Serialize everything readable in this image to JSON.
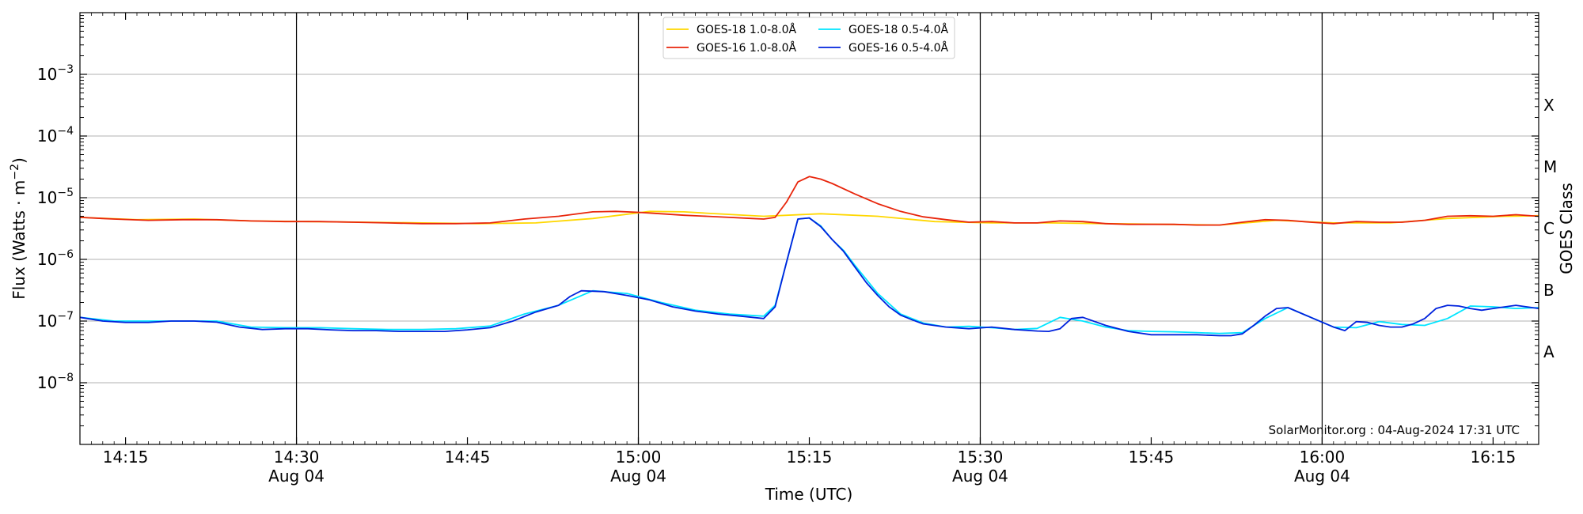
{
  "chart_data": {
    "type": "line",
    "xlabel": "Time (UTC)",
    "ylabel_main": "Flux (Watts · m",
    "ylabel_sup": "−2",
    "ylabel_close": ")",
    "ylabel_right": "GOES Class",
    "y_scale": "log",
    "ylim": [
      1e-09,
      0.01
    ],
    "x_range_minutes": [
      0,
      128
    ],
    "x_ticks": [
      {
        "m": 4,
        "time": "14:15",
        "date": ""
      },
      {
        "m": 19,
        "time": "14:30",
        "date": "Aug 04"
      },
      {
        "m": 34,
        "time": "14:45",
        "date": ""
      },
      {
        "m": 49,
        "time": "15:00",
        "date": "Aug 04"
      },
      {
        "m": 64,
        "time": "15:15",
        "date": ""
      },
      {
        "m": 79,
        "time": "15:30",
        "date": "Aug 04"
      },
      {
        "m": 94,
        "time": "15:45",
        "date": ""
      },
      {
        "m": 109,
        "time": "16:00",
        "date": "Aug 04"
      },
      {
        "m": 124,
        "time": "16:15",
        "date": ""
      }
    ],
    "y_ticks": [
      {
        "exp": -8,
        "base": "10",
        "sup": "−8"
      },
      {
        "exp": -7,
        "base": "10",
        "sup": "−7"
      },
      {
        "exp": -6,
        "base": "10",
        "sup": "−6"
      },
      {
        "exp": -5,
        "base": "10",
        "sup": "−5"
      },
      {
        "exp": -4,
        "base": "10",
        "sup": "−4"
      },
      {
        "exp": -3,
        "base": "10",
        "sup": "−3"
      }
    ],
    "day_lines_minutes": [
      19,
      49,
      79,
      109
    ],
    "goes_classes": [
      {
        "label": "A",
        "exp": -7.5
      },
      {
        "label": "B",
        "exp": -6.5
      },
      {
        "label": "C",
        "exp": -5.5
      },
      {
        "label": "M",
        "exp": -4.5
      },
      {
        "label": "X",
        "exp": -3.5
      }
    ],
    "legend_position": "upper-center",
    "credit": "SolarMonitor.org : 04-Aug-2024 17:31 UTC",
    "series": [
      {
        "name": "GOES-18 1.0-8.0Å",
        "color": "#ffd700",
        "x": [
          0,
          5,
          10,
          15,
          20,
          25,
          30,
          35,
          40,
          45,
          50,
          53,
          55,
          60,
          65,
          70,
          75,
          80,
          85,
          90,
          95,
          100,
          105,
          110,
          115,
          120,
          125,
          128
        ],
        "y": [
          4.8e-06,
          4.4e-06,
          4.5e-06,
          4.2e-06,
          4.1e-06,
          4e-06,
          3.9e-06,
          3.8e-06,
          3.9e-06,
          4.6e-06,
          6e-06,
          5.9e-06,
          5.6e-06,
          5e-06,
          5.5e-06,
          5e-06,
          4.1e-06,
          3.9e-06,
          3.9e-06,
          3.8e-06,
          3.7e-06,
          3.6e-06,
          4.3e-06,
          3.9e-06,
          3.9e-06,
          4.6e-06,
          5e-06,
          5.1e-06
        ]
      },
      {
        "name": "GOES-16 1.0-8.0Å",
        "color": "#e8250b",
        "x": [
          0,
          3,
          6,
          9,
          12,
          15,
          18,
          21,
          24,
          27,
          30,
          33,
          36,
          39,
          42,
          45,
          47,
          49,
          51,
          53,
          55,
          57,
          59,
          60,
          61,
          62,
          63,
          64,
          65,
          66,
          68,
          70,
          72,
          74,
          76,
          78,
          80,
          82,
          84,
          86,
          88,
          90,
          92,
          94,
          96,
          98,
          100,
          102,
          104,
          106,
          108,
          110,
          112,
          114,
          116,
          118,
          120,
          122,
          124,
          126,
          128
        ],
        "y": [
          4.8e-06,
          4.5e-06,
          4.3e-06,
          4.4e-06,
          4.4e-06,
          4.2e-06,
          4.1e-06,
          4.1e-06,
          4e-06,
          3.9e-06,
          3.8e-06,
          3.8e-06,
          3.9e-06,
          4.5e-06,
          5e-06,
          5.9e-06,
          6e-06,
          5.8e-06,
          5.5e-06,
          5.2e-06,
          5e-06,
          4.8e-06,
          4.6e-06,
          4.5e-06,
          4.8e-06,
          8.5e-06,
          1.8e-05,
          2.2e-05,
          2e-05,
          1.7e-05,
          1.15e-05,
          8e-06,
          6e-06,
          4.9e-06,
          4.4e-06,
          4e-06,
          4.1e-06,
          3.9e-06,
          3.9e-06,
          4.2e-06,
          4.1e-06,
          3.8e-06,
          3.7e-06,
          3.7e-06,
          3.7e-06,
          3.6e-06,
          3.6e-06,
          4e-06,
          4.4e-06,
          4.3e-06,
          4e-06,
          3.8e-06,
          4.1e-06,
          4e-06,
          4e-06,
          4.3e-06,
          5e-06,
          5.1e-06,
          5e-06,
          5.3e-06,
          5e-06
        ]
      },
      {
        "name": "GOES-18 0.5-4.0Å",
        "color": "#00e5ff",
        "x": [
          0,
          3,
          6,
          9,
          12,
          15,
          18,
          21,
          24,
          27,
          30,
          33,
          36,
          39,
          42,
          45,
          48,
          51,
          54,
          57,
          60,
          61,
          62,
          63,
          64,
          65,
          66,
          67,
          68,
          70,
          72,
          74,
          76,
          78,
          80,
          82,
          84,
          86,
          88,
          90,
          92,
          94,
          96,
          98,
          100,
          102,
          104,
          106,
          108,
          110,
          112,
          114,
          116,
          118,
          120,
          122,
          124,
          126,
          128
        ],
        "y": [
          1.15e-07,
          1e-07,
          1e-07,
          1e-07,
          1e-07,
          8e-08,
          7.8e-08,
          7.8e-08,
          7.5e-08,
          7.3e-08,
          7.3e-08,
          7.5e-08,
          8.3e-08,
          1.3e-07,
          1.8e-07,
          3.1e-07,
          2.8e-07,
          2e-07,
          1.5e-07,
          1.3e-07,
          1.2e-07,
          1.8e-07,
          9e-07,
          4.5e-06,
          4.7e-06,
          3.5e-06,
          2.1e-06,
          1.4e-06,
          8e-07,
          2.8e-07,
          1.3e-07,
          9.3e-08,
          8e-08,
          8.2e-08,
          7.8e-08,
          7.3e-08,
          7.6e-08,
          1.15e-07,
          1e-07,
          8e-08,
          7e-08,
          6.8e-08,
          6.7e-08,
          6.5e-08,
          6.3e-08,
          6.5e-08,
          1.1e-07,
          1.65e-07,
          1.15e-07,
          8e-08,
          7.8e-08,
          9.8e-08,
          8.8e-08,
          8.5e-08,
          1.1e-07,
          1.75e-07,
          1.7e-07,
          1.6e-07,
          1.65e-07
        ]
      },
      {
        "name": "GOES-16 0.5-4.0Å",
        "color": "#0022dd",
        "x": [
          0,
          2,
          4,
          6,
          8,
          10,
          12,
          14,
          16,
          18,
          20,
          22,
          24,
          26,
          28,
          30,
          32,
          34,
          36,
          38,
          40,
          42,
          43,
          44,
          46,
          48,
          50,
          52,
          54,
          56,
          58,
          60,
          61,
          62,
          63,
          64,
          65,
          66,
          67,
          68,
          69,
          70,
          71,
          72,
          73,
          74,
          76,
          78,
          80,
          82,
          84,
          85,
          86,
          87,
          88,
          90,
          92,
          94,
          96,
          98,
          100,
          101,
          102,
          103,
          104,
          105,
          106,
          108,
          110,
          111,
          112,
          113,
          114,
          115,
          116,
          117,
          118,
          119,
          120,
          121,
          122,
          123,
          124,
          126,
          128
        ],
        "y": [
          1.15e-07,
          1e-07,
          9.5e-08,
          9.5e-08,
          1e-07,
          1e-07,
          9.6e-08,
          8e-08,
          7.3e-08,
          7.5e-08,
          7.5e-08,
          7.2e-08,
          7e-08,
          7e-08,
          6.8e-08,
          6.8e-08,
          6.8e-08,
          7.2e-08,
          7.8e-08,
          1e-07,
          1.4e-07,
          1.8e-07,
          2.5e-07,
          3.1e-07,
          3e-07,
          2.6e-07,
          2.2e-07,
          1.7e-07,
          1.45e-07,
          1.3e-07,
          1.2e-07,
          1.1e-07,
          1.7e-07,
          9e-07,
          4.5e-06,
          4.7e-06,
          3.4e-06,
          2.1e-06,
          1.35e-06,
          7.5e-07,
          4.2e-07,
          2.6e-07,
          1.7e-07,
          1.25e-07,
          1.05e-07,
          9e-08,
          8e-08,
          7.5e-08,
          8e-08,
          7.3e-08,
          6.9e-08,
          6.8e-08,
          7.5e-08,
          1.1e-07,
          1.15e-07,
          8.5e-08,
          6.8e-08,
          6e-08,
          6e-08,
          6e-08,
          5.8e-08,
          5.8e-08,
          6.2e-08,
          8.5e-08,
          1.2e-07,
          1.6e-07,
          1.65e-07,
          1.15e-07,
          8e-08,
          7e-08,
          9.8e-08,
          9.5e-08,
          8.5e-08,
          8e-08,
          8e-08,
          9e-08,
          1.1e-07,
          1.6e-07,
          1.8e-07,
          1.75e-07,
          1.6e-07,
          1.5e-07,
          1.6e-07,
          1.8e-07,
          1.6e-07
        ]
      }
    ]
  }
}
